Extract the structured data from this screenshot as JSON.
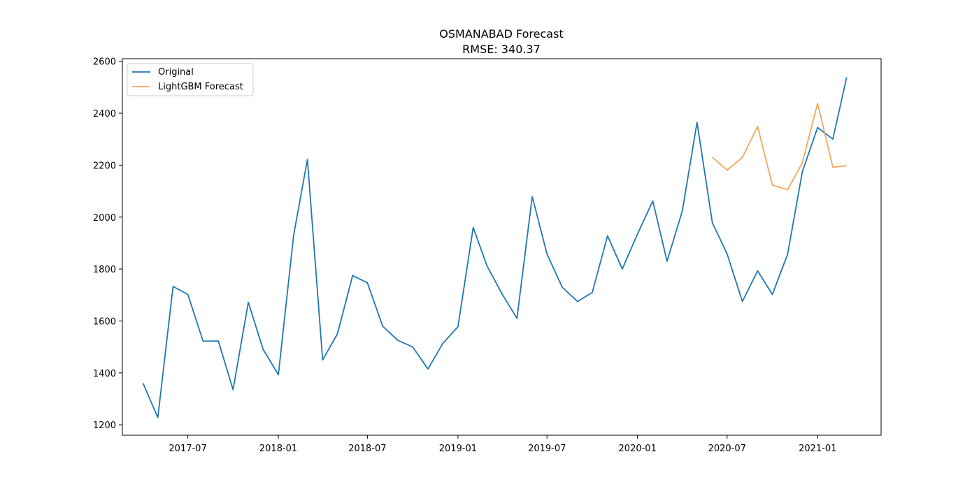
{
  "chart_data": {
    "type": "line",
    "title": "OSMANABAD Forecast",
    "subtitle": "RMSE: 340.37",
    "xlabel": "",
    "ylabel": "",
    "xlim": [
      "2017-02-18",
      "2021-05-10"
    ],
    "ylim": [
      1160,
      2610
    ],
    "x_ticks": [
      "2017-07",
      "2018-01",
      "2018-07",
      "2019-01",
      "2019-07",
      "2020-01",
      "2020-07",
      "2021-01"
    ],
    "y_ticks": [
      1200,
      1400,
      1600,
      1800,
      2000,
      2200,
      2400,
      2600
    ],
    "grid": false,
    "legend": "top-left",
    "series": [
      {
        "name": "Original",
        "color": "#1f77b4",
        "x": [
          "2017-04",
          "2017-05",
          "2017-06",
          "2017-07",
          "2017-08",
          "2017-09",
          "2017-10",
          "2017-11",
          "2017-12",
          "2018-01",
          "2018-02",
          "2018-03",
          "2018-04",
          "2018-05",
          "2018-06",
          "2018-07",
          "2018-08",
          "2018-09",
          "2018-10",
          "2018-11",
          "2018-12",
          "2019-01",
          "2019-02",
          "2019-03",
          "2019-04",
          "2019-05",
          "2019-06",
          "2019-07",
          "2019-08",
          "2019-09",
          "2019-10",
          "2019-11",
          "2019-12",
          "2020-01",
          "2020-02",
          "2020-03",
          "2020-04",
          "2020-05",
          "2020-06",
          "2020-07",
          "2020-08",
          "2020-09",
          "2020-10",
          "2020-11",
          "2020-12",
          "2021-01",
          "2021-02",
          "2021-03"
        ],
        "y": [
          1360,
          1228,
          1733,
          1702,
          1522,
          1523,
          1335,
          1672,
          1491,
          1393,
          1930,
          2222,
          1450,
          1550,
          1775,
          1747,
          1580,
          1525,
          1500,
          1415,
          1513,
          1578,
          1960,
          1812,
          1703,
          1610,
          2079,
          1858,
          1730,
          1675,
          1710,
          1928,
          1800,
          1935,
          2062,
          1830,
          2023,
          2365,
          1978,
          1858,
          1675,
          1793,
          1702,
          1857,
          2175,
          2345,
          2300,
          2538
        ]
      },
      {
        "name": "LightGBM Forecast",
        "color": "#f5a65b",
        "x": [
          "2020-06",
          "2020-07",
          "2020-08",
          "2020-09",
          "2020-10",
          "2020-11",
          "2020-12",
          "2021-01",
          "2021-02",
          "2021-03"
        ],
        "y": [
          2230,
          2181,
          2230,
          2349,
          2123,
          2105,
          2210,
          2438,
          2192,
          2198
        ]
      }
    ]
  }
}
